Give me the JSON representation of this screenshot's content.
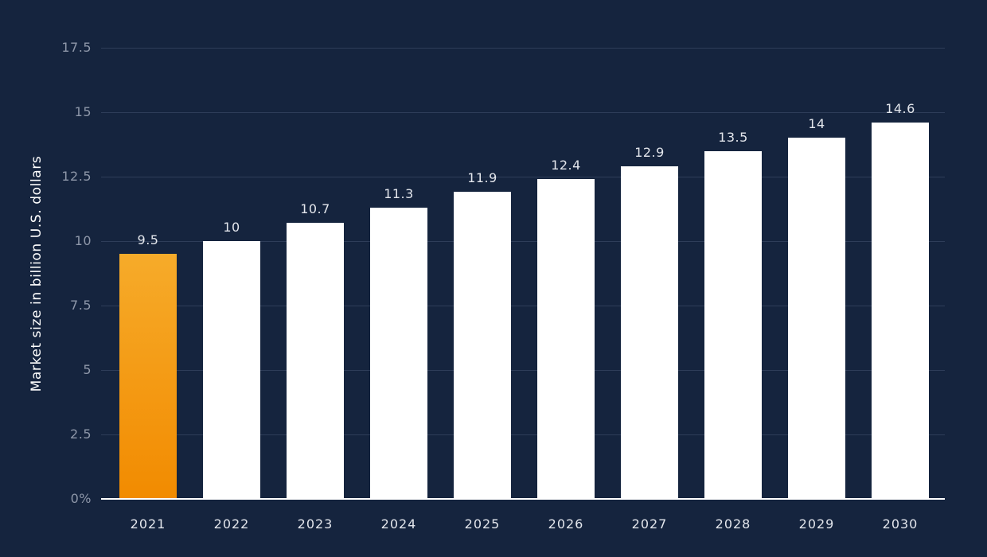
{
  "chart_data": {
    "type": "bar",
    "title": "",
    "xlabel": "",
    "ylabel": "Market size in billion U.S. dollars",
    "categories": [
      "2021",
      "2022",
      "2023",
      "2024",
      "2025",
      "2026",
      "2027",
      "2028",
      "2029",
      "2030"
    ],
    "values": [
      9.5,
      10,
      10.7,
      11.3,
      11.9,
      12.4,
      12.9,
      13.5,
      14,
      14.6
    ],
    "value_labels": [
      "9.5",
      "10",
      "10.7",
      "11.3",
      "11.9",
      "12.4",
      "12.9",
      "13.5",
      "14",
      "14.6"
    ],
    "ylim": [
      0,
      17.5
    ],
    "y_ticks": [
      {
        "value": 17.5,
        "label": "17.5"
      },
      {
        "value": 15,
        "label": "15"
      },
      {
        "value": 12.5,
        "label": "12.5"
      },
      {
        "value": 10,
        "label": "10"
      },
      {
        "value": 7.5,
        "label": "7.5"
      },
      {
        "value": 5,
        "label": "5"
      },
      {
        "value": 2.5,
        "label": "2.5"
      },
      {
        "value": 0,
        "label": "0%"
      }
    ],
    "grid": true,
    "legend": false,
    "highlight_index": 0,
    "colors": {
      "background": "#15243e",
      "bar": "#ffffff",
      "highlight_top": "#f6ab2a",
      "highlight_bottom": "#f28b00",
      "gridline": "#2e3d59",
      "baseline": "#ffffff",
      "tick_label": "#8e97a9",
      "value_label": "#e3e6ec",
      "x_label": "#e3e6ec",
      "axis_title": "#ffffff"
    }
  }
}
